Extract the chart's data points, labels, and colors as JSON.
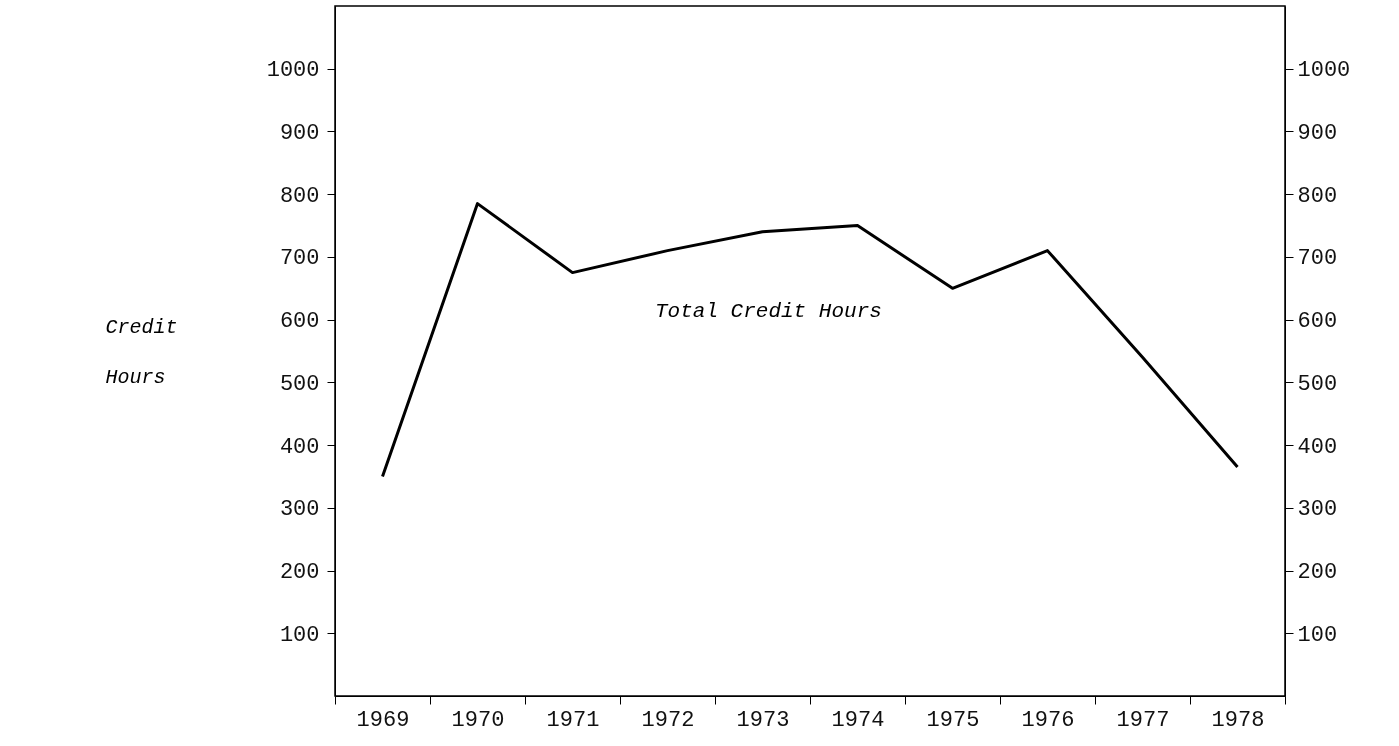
{
  "chart_data": {
    "type": "line",
    "ylabel": "Credit Hours",
    "categories": [
      "1969",
      "1970",
      "1971",
      "1972",
      "1973",
      "1974",
      "1975",
      "1976",
      "1977",
      "1978"
    ],
    "series": [
      {
        "name": "Total Credit Hours",
        "color": "#000000",
        "values": [
          350,
          785,
          675,
          710,
          740,
          750,
          650,
          710,
          540,
          365
        ]
      }
    ],
    "ylim": [
      0,
      1100
    ],
    "yticks": [
      100,
      200,
      300,
      400,
      500,
      600,
      700,
      800,
      900,
      {
        "value": 1000,
        "label": "1000"
      }
    ],
    "y2lim": [
      0,
      1100
    ],
    "y2ticks": [
      100,
      200,
      300,
      400,
      500,
      600,
      700,
      800,
      900,
      {
        "value": 1000,
        "label": "1000"
      }
    ],
    "grid": false,
    "marker": "none",
    "line_style": "solid"
  }
}
